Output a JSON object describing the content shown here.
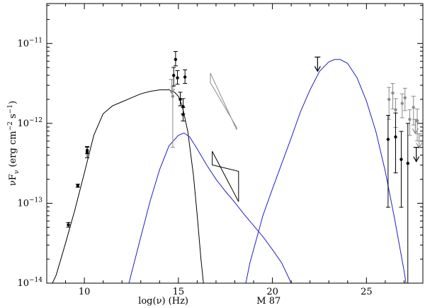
{
  "chart_data": {
    "type": "scatter",
    "object_label": "M 87",
    "xlabel": "log(ν) (Hz)",
    "ylabel_parts": [
      "νF",
      "ν",
      " (erg cm",
      "−2",
      " s",
      "−1",
      ")"
    ],
    "xlim": [
      8.0,
      28.0
    ],
    "ylim_log10": [
      -14,
      -10.5
    ],
    "y_scale": "log",
    "x_ticks": [
      {
        "value": 10,
        "label": "10"
      },
      {
        "value": 15,
        "label": "15"
      },
      {
        "value": 20,
        "label": "20"
      },
      {
        "value": 25,
        "label": "25"
      }
    ],
    "y_ticks": [
      {
        "exp": -11,
        "label_base": "10",
        "label_exp": "−11"
      },
      {
        "exp": -12,
        "label_base": "10",
        "label_exp": "−12"
      },
      {
        "exp": -13,
        "label_base": "10",
        "label_exp": "−13"
      },
      {
        "exp": -14,
        "label_base": "10",
        "label_exp": "−14"
      }
    ],
    "grid": false,
    "legend": "none",
    "colors": {
      "black": "#000000",
      "blue": "#1f1fc8",
      "gray": "#8c8c8c"
    },
    "series": [
      {
        "kind": "line",
        "color": "black",
        "x": [
          8.0,
          8.5,
          9.0,
          9.5,
          10.0,
          10.5,
          11.0,
          11.5,
          12.0,
          12.5,
          13.0,
          13.5,
          14.0,
          14.5,
          14.8,
          15.0,
          15.2,
          15.5,
          15.8,
          16.0,
          16.2,
          16.4,
          16.45
        ],
        "log_y": [
          -14.15,
          -13.9,
          -13.5,
          -13.08,
          -12.62,
          -12.15,
          -11.88,
          -11.78,
          -11.73,
          -11.68,
          -11.63,
          -11.6,
          -11.58,
          -11.58,
          -11.61,
          -11.66,
          -11.78,
          -12.1,
          -12.65,
          -13.15,
          -13.7,
          -14.15,
          -14.35
        ]
      },
      {
        "kind": "line",
        "color": "blue",
        "x": [
          12.1,
          12.5,
          13.0,
          13.5,
          14.0,
          14.5,
          15.0,
          15.3,
          15.6,
          16.0,
          16.5,
          17.0,
          17.5,
          18.0,
          18.5,
          19.0,
          19.5,
          20.0,
          20.5,
          21.0,
          21.5,
          21.8
        ],
        "log_y": [
          -14.25,
          -13.88,
          -13.42,
          -12.97,
          -12.58,
          -12.28,
          -12.15,
          -12.12,
          -12.17,
          -12.32,
          -12.52,
          -12.7,
          -12.85,
          -12.99,
          -13.14,
          -13.28,
          -13.42,
          -13.58,
          -13.75,
          -14.0,
          -14.3,
          -14.5
        ]
      },
      {
        "kind": "line",
        "color": "blue",
        "x": [
          18.2,
          18.8,
          19.5,
          20.0,
          20.5,
          21.0,
          21.5,
          22.0,
          22.5,
          23.0,
          23.3,
          23.6,
          24.0,
          24.5,
          25.0,
          25.5,
          26.0,
          26.5,
          27.0,
          27.3,
          27.5
        ],
        "log_y": [
          -14.45,
          -13.75,
          -13.15,
          -12.82,
          -12.5,
          -12.18,
          -11.85,
          -11.58,
          -11.35,
          -11.23,
          -11.2,
          -11.2,
          -11.25,
          -11.43,
          -11.72,
          -12.1,
          -12.6,
          -13.2,
          -13.85,
          -14.3,
          -14.5
        ]
      }
    ],
    "points": [
      {
        "x": 9.15,
        "log_y": -13.27,
        "err_lo": 0.03,
        "err_hi": 0.03,
        "color": "black",
        "marker": "square"
      },
      {
        "x": 9.65,
        "log_y": -12.78,
        "err_lo": 0.02,
        "err_hi": 0.02,
        "color": "black",
        "marker": "square"
      },
      {
        "x": 10.15,
        "log_y": -12.36,
        "err_lo": 0.07,
        "err_hi": 0.07,
        "color": "black",
        "marker": "square"
      },
      {
        "x": 10.15,
        "log_y": -12.34,
        "err_lo": 0.04,
        "err_hi": 0.04,
        "color": "black",
        "marker": "square"
      },
      {
        "x": 14.7,
        "log_y": -11.66,
        "err_lo": 0.64,
        "err_hi": 0.12,
        "color": "gray",
        "marker": "dot"
      },
      {
        "x": 14.75,
        "log_y": -11.4,
        "err_lo": 0.13,
        "err_hi": 0.1,
        "color": "black",
        "marker": "dot"
      },
      {
        "x": 14.85,
        "log_y": -11.2,
        "err_lo": 0.08,
        "err_hi": 0.1,
        "color": "black",
        "marker": "dot"
      },
      {
        "x": 14.95,
        "log_y": -11.43,
        "err_lo": 0.08,
        "err_hi": 0.09,
        "color": "black",
        "marker": "dot"
      },
      {
        "x": 15.35,
        "log_y": -11.42,
        "err_lo": 0.08,
        "err_hi": 0.09,
        "color": "black",
        "marker": "dot"
      },
      {
        "x": 15.1,
        "log_y": -11.7,
        "err_lo": 0.08,
        "err_hi": 0.09,
        "color": "black",
        "marker": "dot"
      },
      {
        "x": 15.25,
        "log_y": -11.79,
        "err_lo": 0.09,
        "err_hi": 0.1,
        "color": "black",
        "marker": "dot"
      },
      {
        "x": 15.25,
        "log_y": -11.89,
        "err_lo": 0.08,
        "err_hi": 0.09,
        "color": "black",
        "marker": "dot"
      },
      {
        "x": 26.2,
        "log_y": -11.7,
        "err_lo": 0.25,
        "err_hi": 0.15,
        "color": "gray",
        "marker": "dot"
      },
      {
        "x": 26.4,
        "log_y": -11.62,
        "err_lo": 0.2,
        "err_hi": 0.12,
        "color": "gray",
        "marker": "dot"
      },
      {
        "x": 26.55,
        "log_y": -11.83,
        "err_lo": 0.22,
        "err_hi": 0.14,
        "color": "gray",
        "marker": "dot"
      },
      {
        "x": 26.9,
        "log_y": -11.75,
        "err_lo": 0.18,
        "err_hi": 0.12,
        "color": "gray",
        "marker": "dot"
      },
      {
        "x": 27.05,
        "log_y": -11.68,
        "err_lo": 0.16,
        "err_hi": 0.12,
        "color": "gray",
        "marker": "dot"
      },
      {
        "x": 27.3,
        "log_y": -11.95,
        "err_lo": 0.2,
        "err_hi": 0.12,
        "color": "gray",
        "marker": "dot"
      },
      {
        "x": 27.5,
        "log_y": -11.8,
        "err_lo": 0.22,
        "err_hi": 0.14,
        "color": "gray",
        "marker": "dot"
      },
      {
        "x": 27.7,
        "log_y": -11.97,
        "err_lo": 0.25,
        "err_hi": 0.15,
        "color": "gray",
        "marker": "dot"
      },
      {
        "x": 26.15,
        "log_y": -12.2,
        "err_lo": 0.85,
        "err_hi": 0.3,
        "color": "black",
        "marker": "dot"
      },
      {
        "x": 26.55,
        "log_y": -12.17,
        "err_lo": 0.45,
        "err_hi": 0.3,
        "color": "black",
        "marker": "dot"
      },
      {
        "x": 26.85,
        "log_y": -12.45,
        "err_lo": 0.6,
        "err_hi": 0.35,
        "color": "black",
        "marker": "dot"
      },
      {
        "x": 27.2,
        "log_y": -12.5,
        "err_lo": 1.6,
        "err_hi": 0.5,
        "color": "black",
        "marker": "dot"
      }
    ],
    "upper_limits": [
      {
        "x": 22.4,
        "log_y": -11.17,
        "color": "black"
      },
      {
        "x": 14.65,
        "log_y": -11.45,
        "color": "gray"
      },
      {
        "x": 27.6,
        "log_y": -11.95,
        "color": "gray"
      },
      {
        "x": 27.8,
        "log_y": -12.13,
        "color": "gray"
      },
      {
        "x": 27.65,
        "log_y": -12.3,
        "color": "black"
      }
    ],
    "bowties": [
      {
        "color": "gray",
        "x": [
          16.7,
          18.1
        ],
        "log_y_top": [
          -11.37,
          -12.08
        ],
        "log_y_bot": [
          -11.49,
          -12.05
        ],
        "pivot": 0.6
      },
      {
        "color": "black",
        "x": [
          16.8,
          18.2
        ],
        "log_y_top": [
          -12.35,
          -12.98
        ],
        "log_y_bot": [
          -12.52,
          -12.6
        ],
        "pivot": 0.45
      }
    ]
  }
}
